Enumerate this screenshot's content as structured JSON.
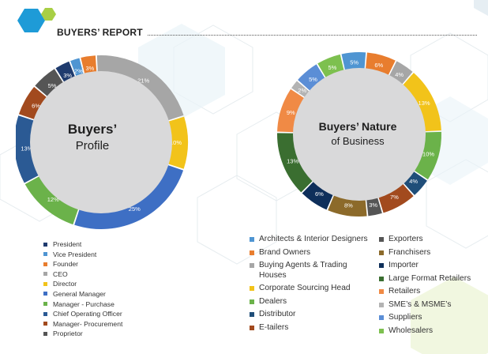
{
  "report": {
    "title": "BUYERS’ REPORT"
  },
  "colors": {
    "accent_blue": "#1E9BD7",
    "accent_green": "#A8CF45",
    "center_grey": "#D9D9DA"
  },
  "chart_data": [
    {
      "type": "pie",
      "style": "donut",
      "center_title": "Buyers’",
      "center_subtitle": "Profile",
      "categories": [
        "President",
        "Vice President",
        "Founder",
        "CEO",
        "Director",
        "General Manager",
        "Manager - Purchase",
        "Chief Operating Officer",
        "Manager- Procurement",
        "Proprietor"
      ],
      "values": [
        3,
        2,
        3,
        21,
        10,
        25,
        12,
        13,
        6,
        5
      ],
      "labels": [
        "3%",
        "2%",
        "3%",
        "21%",
        "10%",
        "25%",
        "12%",
        "13%",
        "6%",
        "5%"
      ],
      "colors": [
        "#1F3B6E",
        "#4F95D2",
        "#E87D2E",
        "#A6A6A6",
        "#F2C31A",
        "#3E6FC4",
        "#6BB24A",
        "#2B5A94",
        "#A24A1E",
        "#555555"
      ],
      "label_colors": [
        "#ffffff",
        "#ffffff",
        "#ffffff",
        "#ffffff",
        "#ffffff",
        "#ffffff",
        "#ffffff",
        "#ffffff",
        "#ffffff",
        "#ffffff"
      ],
      "legend_position": "bottom"
    },
    {
      "type": "pie",
      "style": "donut",
      "center_title": "Buyers’ Nature",
      "center_subtitle": "of Business",
      "categories": [
        "Architects & Interior Designers",
        "Brand Owners",
        "Buying Agents & Trading Houses",
        "Corporate Sourcing Head",
        "Dealers",
        "Distributor",
        "E-tailers",
        "Exporters",
        "Franchisers",
        "Importer",
        "Large Format Retailers",
        "Retailers",
        "SME’s & MSME’s",
        "Suppliers",
        "Wholesalers"
      ],
      "values": [
        5,
        6,
        4,
        13,
        10,
        4,
        7,
        3,
        8,
        6,
        13,
        9,
        2,
        5,
        5
      ],
      "labels": [
        "5%",
        "6%",
        "4%",
        "13%",
        "10%",
        "4%",
        "7%",
        "3%",
        "8%",
        "6%",
        "13%",
        "9%",
        "2%",
        "5%",
        "5%"
      ],
      "colors": [
        "#4F95D2",
        "#E87D2E",
        "#A6A6A6",
        "#F2C31A",
        "#6BB24A",
        "#1F4E79",
        "#A24A1E",
        "#555555",
        "#8C6A2A",
        "#0E2F5A",
        "#3A6E30",
        "#F08A45",
        "#B3B3B3",
        "#5B8ED6",
        "#7DC04F"
      ],
      "label_colors": [
        "#ffffff",
        "#ffffff",
        "#ffffff",
        "#ffffff",
        "#ffffff",
        "#ffffff",
        "#ffffff",
        "#ffffff",
        "#ffffff",
        "#ffffff",
        "#ffffff",
        "#ffffff",
        "#ffffff",
        "#ffffff",
        "#ffffff"
      ],
      "legend_position": "bottom"
    }
  ]
}
